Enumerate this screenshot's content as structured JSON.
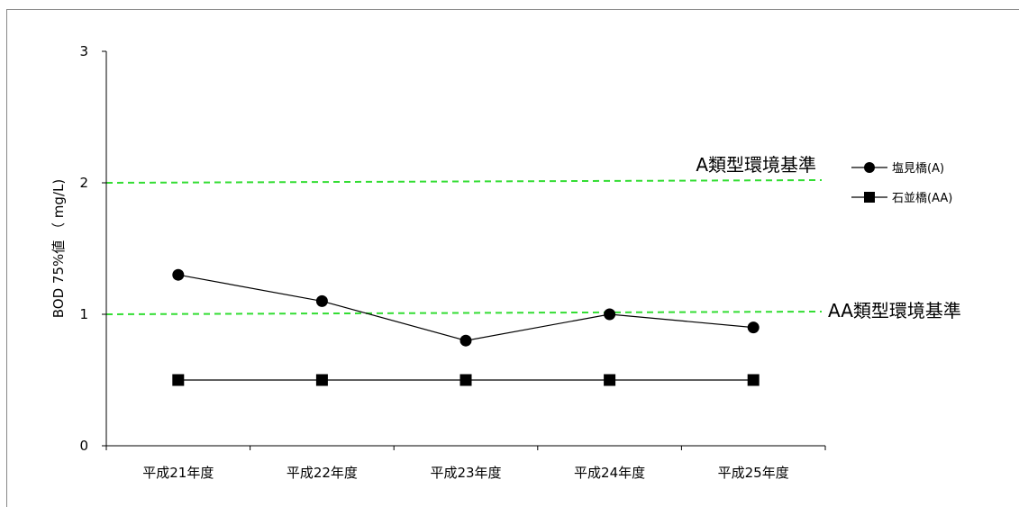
{
  "chart_data": {
    "type": "line",
    "title": "",
    "xlabel": "",
    "ylabel": "BOD 75%値 （ mg/L)",
    "categories": [
      "平成21年度",
      "平成22年度",
      "平成23年度",
      "平成24年度",
      "平成25年度"
    ],
    "ylim": [
      0,
      3
    ],
    "yticks": [
      0,
      1,
      2,
      3
    ],
    "grid": false,
    "legend_position": "right",
    "series": [
      {
        "name": "塩見橋(A)",
        "marker": "circle",
        "color": "#000000",
        "values": [
          1.3,
          1.1,
          0.8,
          1.0,
          0.9
        ]
      },
      {
        "name": "石並橋(AA)",
        "marker": "square",
        "color": "#000000",
        "values": [
          0.5,
          0.5,
          0.5,
          0.5,
          0.5
        ]
      }
    ],
    "reference_lines": [
      {
        "label": "A類型環境基準",
        "value": 2,
        "color": "#33dd33",
        "style": "dashed"
      },
      {
        "label": "AA類型環境基準",
        "value": 1,
        "color": "#33dd33",
        "style": "dashed"
      }
    ]
  }
}
